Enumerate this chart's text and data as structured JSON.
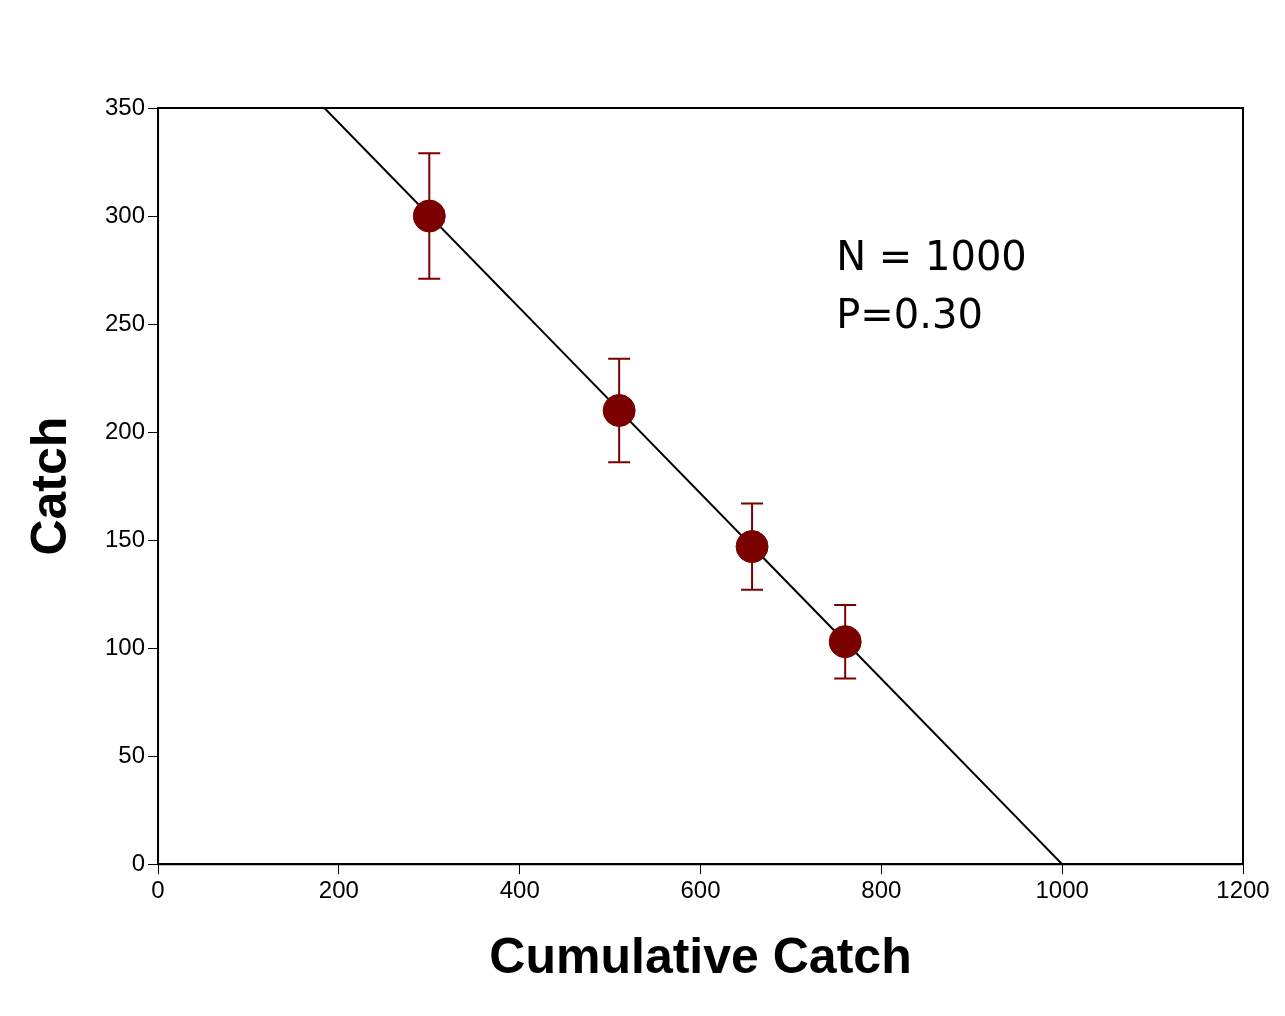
{
  "chart_data": {
    "type": "scatter",
    "xlabel": "Cumulative Catch",
    "ylabel": "Catch",
    "xlim": [
      0,
      1200
    ],
    "xticks": [
      0,
      200,
      400,
      600,
      800,
      1000,
      1200
    ],
    "ylim": [
      0,
      350
    ],
    "yticks": [
      0,
      50,
      100,
      150,
      200,
      250,
      300,
      350
    ],
    "grid": false,
    "legend": false,
    "annotations": [
      "N = 1000",
      "P=0.30"
    ],
    "series": [
      {
        "marker": "circle",
        "color": "#7b0000",
        "x": [
          300,
          510,
          657,
          760
        ],
        "values": [
          300,
          210,
          147,
          103
        ],
        "errors": [
          [
            271,
            329
          ],
          [
            186,
            234
          ],
          [
            127,
            167
          ],
          [
            86,
            120
          ]
        ]
      },
      {
        "type": "line",
        "color": "#000000",
        "x": [
          184,
          1000
        ],
        "values": [
          350,
          0
        ]
      }
    ]
  }
}
